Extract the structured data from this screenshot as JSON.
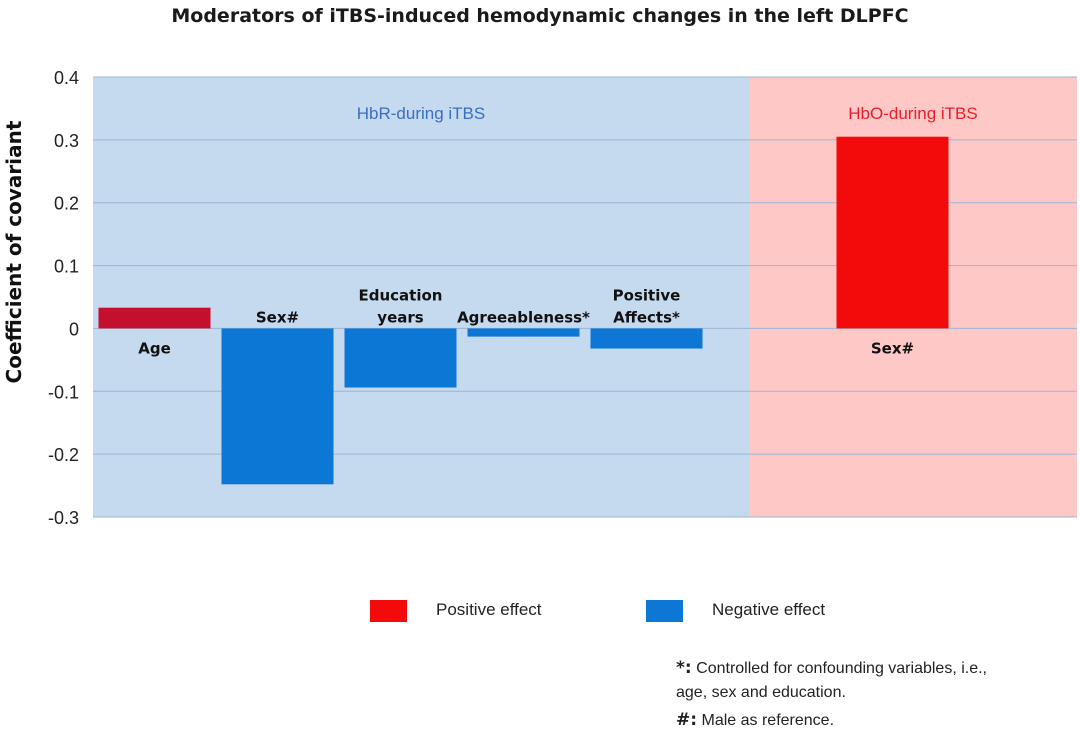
{
  "chart_data": {
    "type": "bar",
    "title": "Moderators of iTBS-induced hemodynamic changes in the left DLPFC",
    "ylabel": "Coefficient of covariant",
    "xlabel": "",
    "ylim": [
      -0.3,
      0.4
    ],
    "yticks": [
      "0.4",
      "0.3",
      "0.2",
      "0.1",
      "0",
      "-0.1",
      "-0.2",
      "-0.3"
    ],
    "grid": true,
    "panels": [
      {
        "label": "HbR-during iTBS",
        "background": "#c5d9ef",
        "label_color": "#3a6fbd",
        "slots": 5
      },
      {
        "label": "HbO-during iTBS",
        "background": "#fec8c6",
        "label_color": "#e8202a",
        "slots": 3
      }
    ],
    "bars": [
      {
        "panel": 0,
        "slot": 0,
        "category": [
          "Age"
        ],
        "value": 0.033,
        "effect": "positive",
        "color": "#c4102e"
      },
      {
        "panel": 0,
        "slot": 1,
        "category": [
          "Sex#"
        ],
        "value": -0.248,
        "effect": "negative",
        "color": "#0d77d6"
      },
      {
        "panel": 0,
        "slot": 2,
        "category": [
          "Education",
          "years"
        ],
        "value": -0.094,
        "effect": "negative",
        "color": "#0d77d6"
      },
      {
        "panel": 0,
        "slot": 3,
        "category": [
          "Agreeableness*"
        ],
        "value": -0.013,
        "effect": "negative",
        "color": "#0d77d6"
      },
      {
        "panel": 0,
        "slot": 4,
        "category": [
          "Positive",
          "Affects*"
        ],
        "value": -0.032,
        "effect": "negative",
        "color": "#0d77d6"
      },
      {
        "panel": 1,
        "slot": 1,
        "category": [
          "Sex#"
        ],
        "value": 0.305,
        "effect": "positive",
        "color": "#f30a0a"
      }
    ],
    "legend": [
      {
        "label": "Positive effect",
        "color": "#f30a0a"
      },
      {
        "label": "Negative effect",
        "color": "#0d77d6"
      }
    ],
    "legend_position": "bottom-center"
  },
  "notes": [
    {
      "symbol": "*:",
      "text": "Controlled for confounding variables, i.e.,",
      "text2": "age, sex and education."
    },
    {
      "symbol": "#:",
      "text": "Male as reference."
    }
  ]
}
